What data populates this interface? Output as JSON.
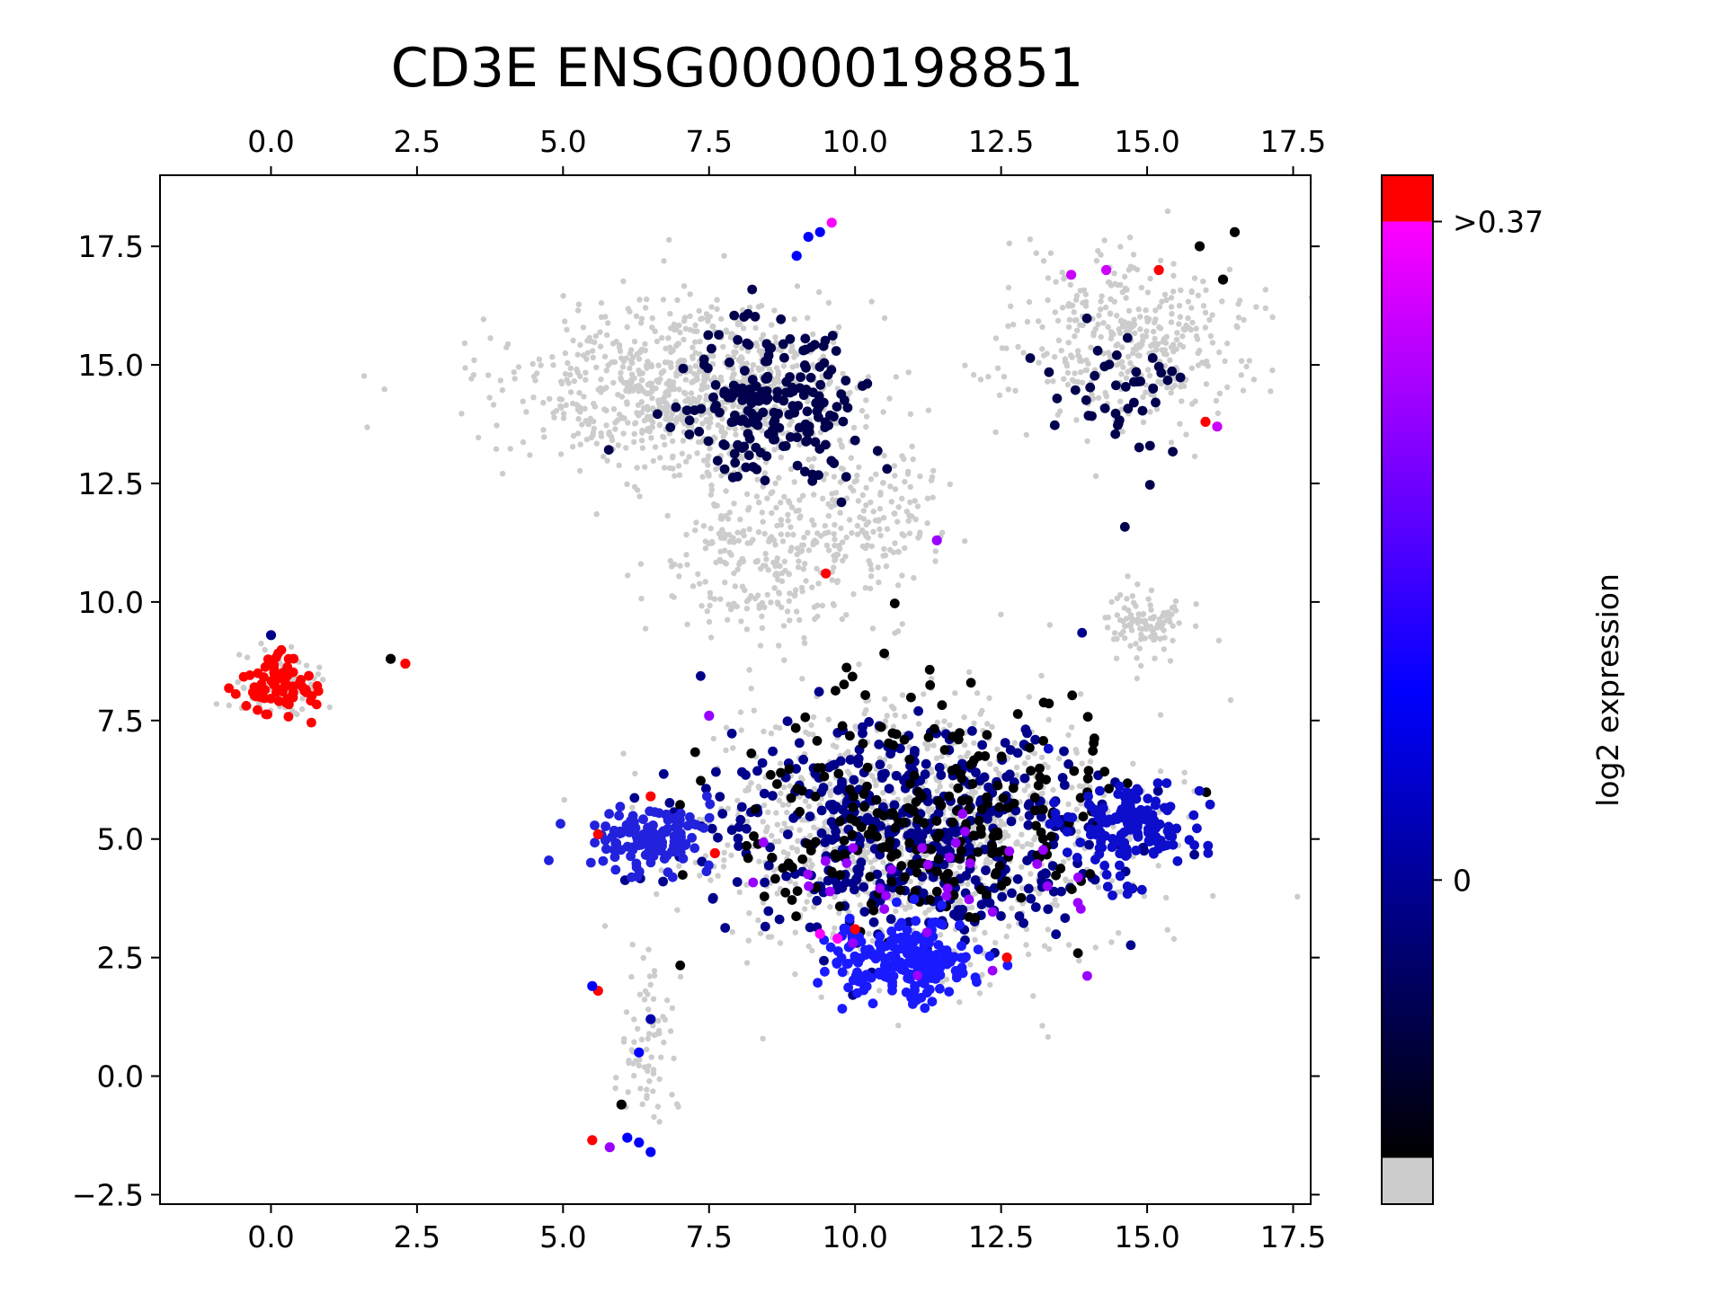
{
  "chart_data": {
    "type": "scatter",
    "title": "CD3E ENSG00000198851",
    "xlabel": "",
    "ylabel": "",
    "xlim": [
      -1.9,
      17.8
    ],
    "ylim": [
      -2.7,
      19.0
    ],
    "xticks": [
      0.0,
      2.5,
      5.0,
      7.5,
      10.0,
      12.5,
      15.0,
      17.5
    ],
    "yticks": [
      -2.5,
      0.0,
      2.5,
      5.0,
      7.5,
      10.0,
      12.5,
      15.0,
      17.5
    ],
    "xtick_labels": [
      "0.0",
      "2.5",
      "5.0",
      "7.5",
      "10.0",
      "12.5",
      "15.0",
      "17.5"
    ],
    "ytick_labels": [
      "−2.5",
      "0.0",
      "2.5",
      "5.0",
      "7.5",
      "10.0",
      "12.5",
      "15.0",
      "17.5"
    ],
    "ticks_on": [
      "top",
      "bottom",
      "left",
      "right"
    ],
    "grid": false,
    "colors": {
      "no_expression": "#cccccc",
      "low": "#000000",
      "mid": "#0000ff",
      "high": "#ff00ff",
      "saturated": "#ff0000"
    },
    "colorbar": {
      "label": "log2 expression",
      "tick_labels": [
        ">0.37",
        "0"
      ],
      "tick_positions_fraction": [
        0.955,
        0.315
      ],
      "segments": [
        {
          "name": "no-expression",
          "color": "#cccccc",
          "from": 0.0,
          "to": 0.045
        },
        {
          "name": "gradient",
          "colors": [
            "#000000",
            "#0000ff",
            "#ff00ff"
          ],
          "from": 0.045,
          "to": 0.955
        },
        {
          "name": "saturated",
          "color": "#ff0000",
          "from": 0.955,
          "to": 1.0
        }
      ]
    },
    "clusters": [
      {
        "name": "top-left",
        "color": "#cccccc",
        "center": [
          7.2,
          14.5
        ],
        "spread": [
          2.6,
          1.6
        ],
        "count": 900
      },
      {
        "name": "top-left-mid",
        "color": "#cccccc",
        "center": [
          8.5,
          11.0
        ],
        "spread": [
          1.6,
          1.6
        ],
        "count": 300
      },
      {
        "name": "top-right",
        "color": "#cccccc",
        "center": [
          14.7,
          15.5
        ],
        "spread": [
          1.8,
          1.6
        ],
        "count": 400
      },
      {
        "name": "center-bridge",
        "color": "#cccccc",
        "center": [
          10.5,
          12.0
        ],
        "spread": [
          1.0,
          1.2
        ],
        "count": 120
      },
      {
        "name": "main-body",
        "color": "#cccccc",
        "center": [
          11.0,
          5.2
        ],
        "spread": [
          3.2,
          2.4
        ],
        "count": 1100
      },
      {
        "name": "right-lobe",
        "color": "#cccccc",
        "center": [
          15.0,
          9.5
        ],
        "spread": [
          0.8,
          0.6
        ],
        "count": 100
      },
      {
        "name": "left-cluster",
        "color": "#cccccc",
        "center": [
          0.2,
          8.2
        ],
        "spread": [
          0.8,
          0.6
        ],
        "count": 90
      },
      {
        "name": "bottom-tail",
        "color": "#cccccc",
        "center": [
          6.5,
          0.5
        ],
        "spread": [
          0.5,
          1.4
        ],
        "count": 70
      },
      {
        "name": "blue-main",
        "color": "#00008b",
        "center": [
          11.0,
          5.0
        ],
        "spread": [
          3.0,
          2.2
        ],
        "count": 500
      },
      {
        "name": "black-main",
        "color": "#000000",
        "center": [
          11.0,
          5.5
        ],
        "spread": [
          3.0,
          2.4
        ],
        "count": 260
      },
      {
        "name": "blue-lower",
        "color": "#1a1aff",
        "center": [
          10.8,
          2.5
        ],
        "spread": [
          1.2,
          0.8
        ],
        "count": 200
      },
      {
        "name": "blue-left-lobe",
        "color": "#2222dd",
        "center": [
          6.5,
          5.0
        ],
        "spread": [
          0.9,
          0.6
        ],
        "count": 140
      },
      {
        "name": "blue-right-lobe",
        "color": "#0d0dcc",
        "center": [
          14.7,
          5.2
        ],
        "spread": [
          1.0,
          1.0
        ],
        "count": 150
      },
      {
        "name": "dark-top",
        "color": "#00004d",
        "center": [
          8.6,
          14.2
        ],
        "spread": [
          1.6,
          1.5
        ],
        "count": 200
      },
      {
        "name": "dark-top-right",
        "color": "#00004d",
        "center": [
          14.6,
          14.5
        ],
        "spread": [
          1.4,
          1.4
        ],
        "count": 45
      },
      {
        "name": "magenta-main",
        "color": "#9900ff",
        "center": [
          11.0,
          4.0
        ],
        "spread": [
          3.0,
          1.6
        ],
        "count": 35
      },
      {
        "name": "red-left-cluster",
        "color": "#ff0000",
        "center": [
          0.1,
          8.2
        ],
        "spread": [
          0.65,
          0.55
        ],
        "count": 80
      }
    ],
    "points": [
      {
        "x": 2.3,
        "y": 8.7,
        "color": "#ff0000"
      },
      {
        "x": 2.05,
        "y": 8.8,
        "color": "#000000"
      },
      {
        "x": 9.5,
        "y": 10.6,
        "color": "#ff0000"
      },
      {
        "x": 15.2,
        "y": 17.0,
        "color": "#ff0000"
      },
      {
        "x": 16.0,
        "y": 13.8,
        "color": "#ff0000"
      },
      {
        "x": 5.6,
        "y": 5.1,
        "color": "#ff0000"
      },
      {
        "x": 6.5,
        "y": 5.9,
        "color": "#ff0000"
      },
      {
        "x": 7.6,
        "y": 4.7,
        "color": "#ff0000"
      },
      {
        "x": 10.0,
        "y": 3.1,
        "color": "#ff0000"
      },
      {
        "x": 12.6,
        "y": 2.5,
        "color": "#ff0000"
      },
      {
        "x": 5.6,
        "y": 1.8,
        "color": "#ff0000"
      },
      {
        "x": 5.5,
        "y": -1.35,
        "color": "#ff0000"
      },
      {
        "x": 9.6,
        "y": 18.0,
        "color": "#ff00ff"
      },
      {
        "x": 9.4,
        "y": 3.0,
        "color": "#ff00ff"
      },
      {
        "x": 9.7,
        "y": 2.9,
        "color": "#ff00ff"
      },
      {
        "x": 13.7,
        "y": 16.9,
        "color": "#cc00ff"
      },
      {
        "x": 14.3,
        "y": 17.0,
        "color": "#cc00ff"
      },
      {
        "x": 16.2,
        "y": 13.7,
        "color": "#cc00ff"
      },
      {
        "x": 5.8,
        "y": -1.5,
        "color": "#9900ff"
      },
      {
        "x": 11.4,
        "y": 11.3,
        "color": "#9900ff"
      },
      {
        "x": 7.5,
        "y": 7.6,
        "color": "#9900ff"
      },
      {
        "x": 9.2,
        "y": 17.7,
        "color": "#0000ff"
      },
      {
        "x": 9.0,
        "y": 17.3,
        "color": "#0000ff"
      },
      {
        "x": 9.4,
        "y": 17.8,
        "color": "#0000ff"
      },
      {
        "x": 5.5,
        "y": 1.9,
        "color": "#0000ff"
      },
      {
        "x": 6.3,
        "y": 0.5,
        "color": "#0000ff"
      },
      {
        "x": 6.1,
        "y": -1.3,
        "color": "#0000ff"
      },
      {
        "x": 6.3,
        "y": -1.4,
        "color": "#0000ff"
      },
      {
        "x": 6.5,
        "y": -1.6,
        "color": "#0000ff"
      },
      {
        "x": 6.0,
        "y": -0.6,
        "color": "#000000"
      },
      {
        "x": 6.5,
        "y": 1.2,
        "color": "#0000aa"
      },
      {
        "x": 0.0,
        "y": 9.3,
        "color": "#00008b"
      },
      {
        "x": 16.5,
        "y": 17.8,
        "color": "#000000"
      },
      {
        "x": 15.9,
        "y": 17.5,
        "color": "#000000"
      },
      {
        "x": 16.3,
        "y": 16.8,
        "color": "#000000"
      }
    ]
  }
}
